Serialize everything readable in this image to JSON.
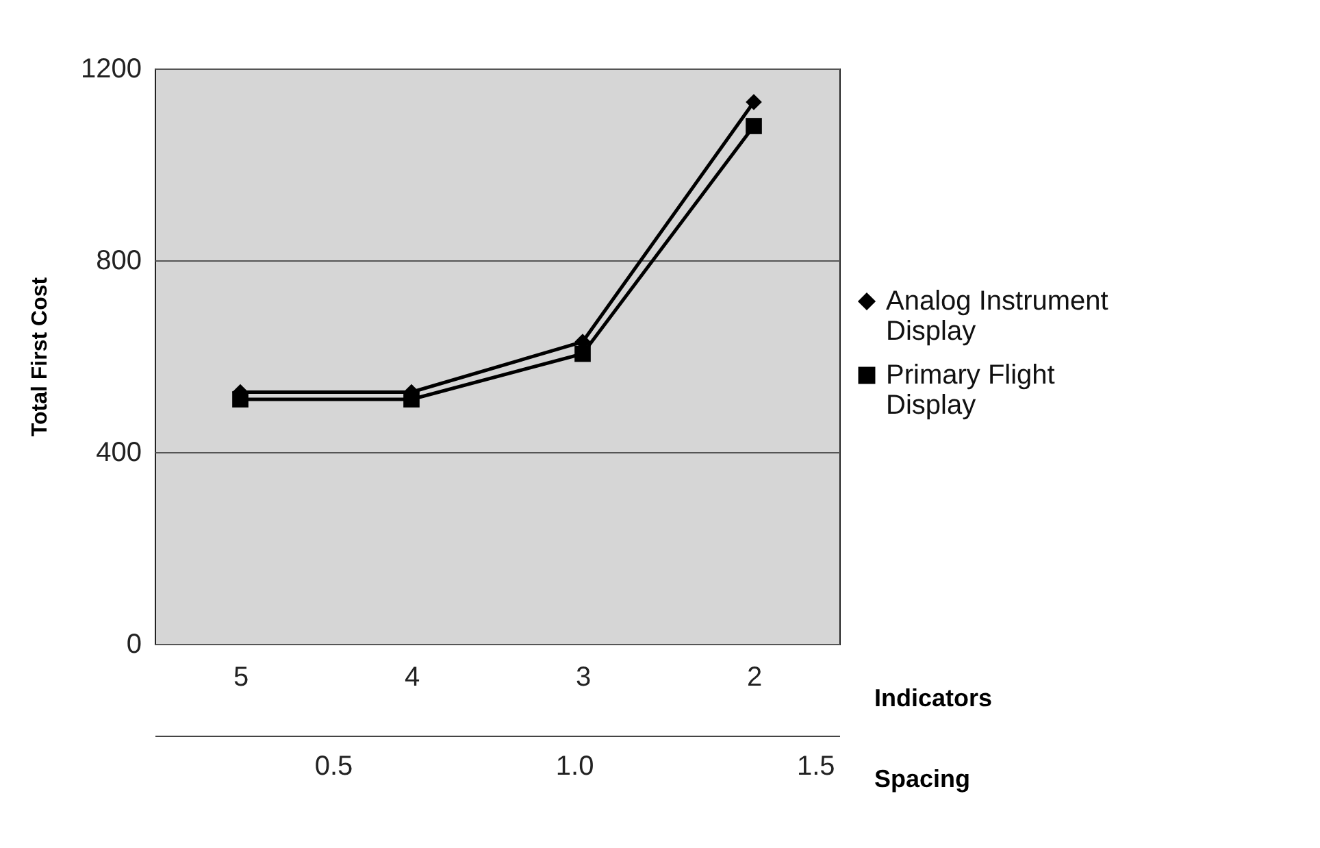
{
  "chart_data": {
    "type": "line",
    "xlabel": "Indicators",
    "ylabel": "Total First Cost",
    "x2label": "Spacing",
    "categories": [
      "5",
      "4",
      "3",
      "2"
    ],
    "series": [
      {
        "name": "Analog Instrument Display",
        "color": "#000000",
        "marker": "diamond",
        "values": [
          525,
          525,
          630,
          1130
        ]
      },
      {
        "name": "Primary Flight Display",
        "color": "#000000",
        "marker": "square",
        "values": [
          510,
          510,
          605,
          1080
        ]
      }
    ],
    "ylim": [
      0,
      1200
    ],
    "yticks": [
      0,
      400,
      800,
      1200
    ],
    "x2lim": [
      0.13,
      1.55
    ],
    "x2ticks": [
      {
        "value": 0.5,
        "label": "0.5"
      },
      {
        "value": 1,
        "label": "1.0"
      },
      {
        "value": 1.5,
        "label": "1.5"
      }
    ],
    "grid": "y",
    "legend": "right",
    "line_style": "solid"
  }
}
